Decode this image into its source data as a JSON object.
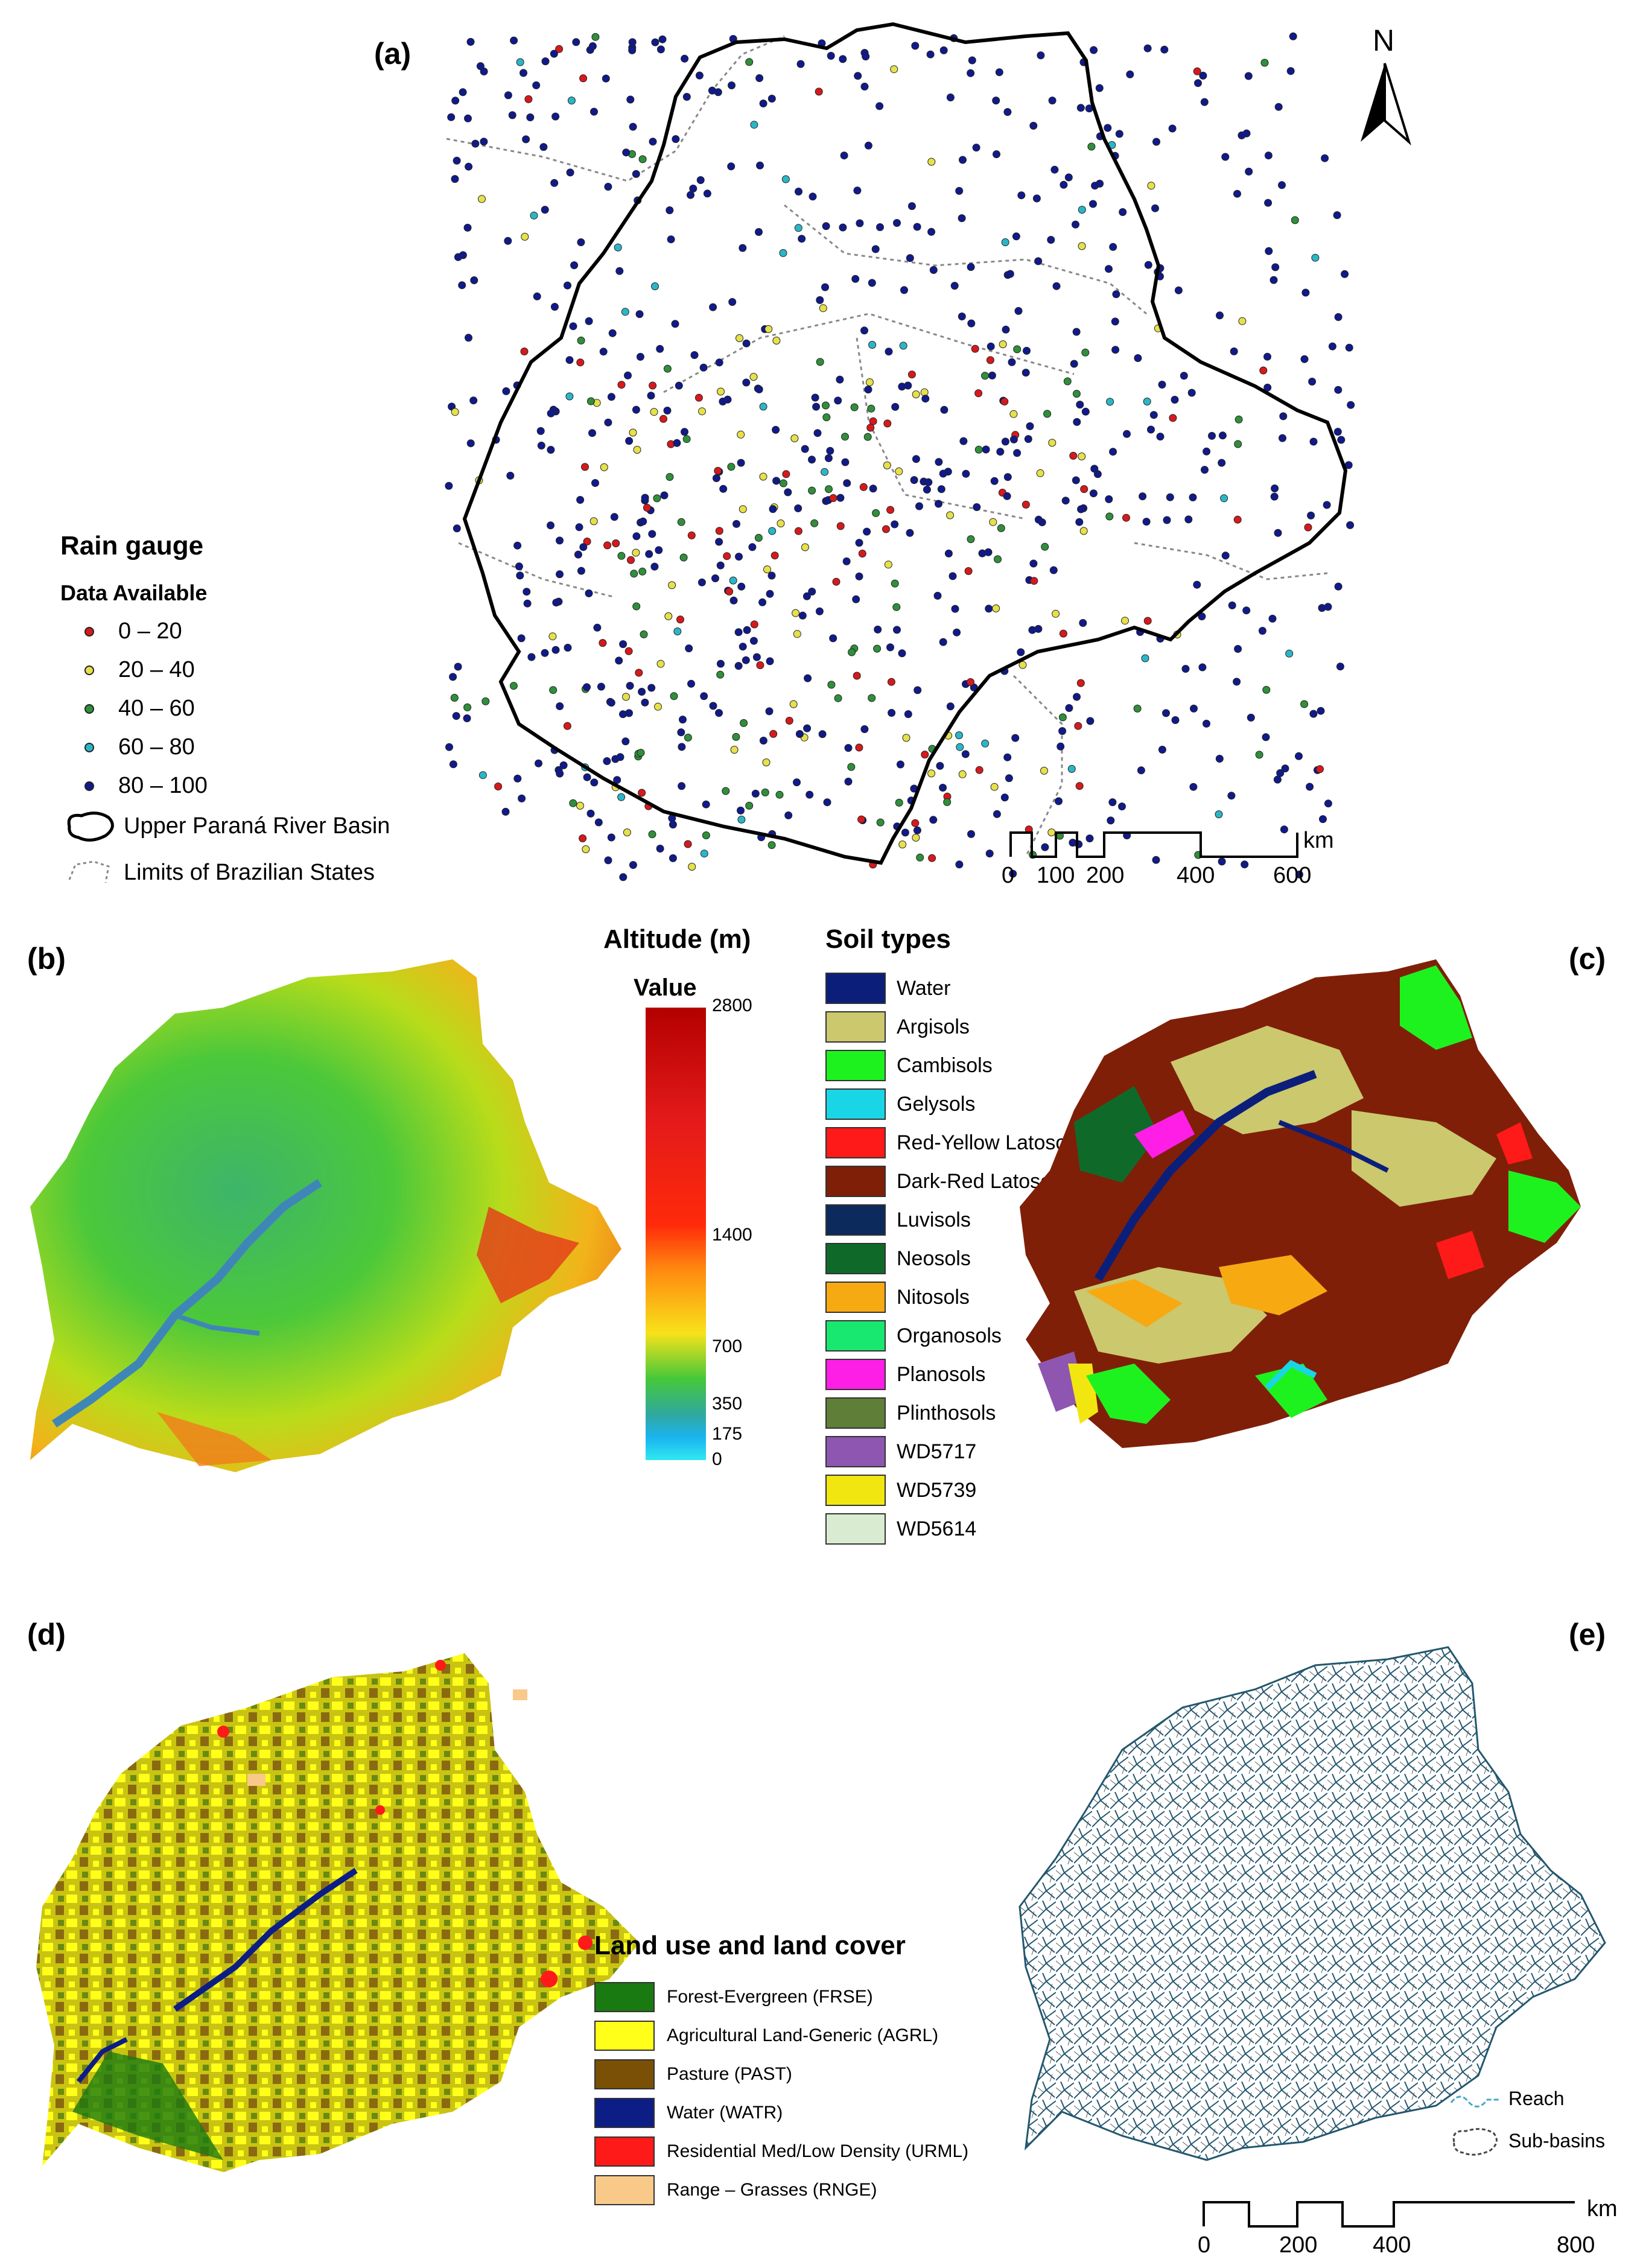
{
  "panels": {
    "a": "(a)",
    "b": "(b)",
    "c": "(c)",
    "d": "(d)",
    "e": "(e)"
  },
  "north_label": "N",
  "rain_gauge": {
    "title": "Rain gauge",
    "subtitle": "Data Available",
    "classes": [
      {
        "label": "0  –  20",
        "color": "#d7191c"
      },
      {
        "label": "20  –  40",
        "color": "#e6e04a"
      },
      {
        "label": "40  –  60",
        "color": "#2f8f3a"
      },
      {
        "label": "60  –  80",
        "color": "#2bb6c8"
      },
      {
        "label": "80  –  100",
        "color": "#101a8a"
      }
    ],
    "basin_label": "Upper Paraná River Basin",
    "states_label": "Limits of Brazilian States"
  },
  "scale_a": {
    "unit": "km",
    "ticks": [
      "0",
      "100",
      "200",
      "400",
      "600"
    ]
  },
  "altitude": {
    "title": "Altitude (m)",
    "subtitle": "Value",
    "ticks": [
      "2800",
      "1400",
      "700",
      "350",
      "175",
      "0"
    ]
  },
  "soil": {
    "title": "Soil types",
    "items": [
      {
        "label": "Water",
        "color": "#0b1f7a"
      },
      {
        "label": "Argisols",
        "color": "#cbc86e"
      },
      {
        "label": "Cambisols",
        "color": "#1ef21e"
      },
      {
        "label": "Gelysols",
        "color": "#19d6e6"
      },
      {
        "label": "Red-Yellow Latosols",
        "color": "#ff1a1a"
      },
      {
        "label": "Dark-Red Latosols",
        "color": "#7f1f08"
      },
      {
        "label": "Luvisols",
        "color": "#0c2a5c"
      },
      {
        "label": "Neosols",
        "color": "#0f6a2a"
      },
      {
        "label": "Nitosols",
        "color": "#f7a912"
      },
      {
        "label": "Organosols",
        "color": "#19e870"
      },
      {
        "label": "Planosols",
        "color": "#ff1ee6"
      },
      {
        "label": "Plinthosols",
        "color": "#5f7f38"
      },
      {
        "label": "WD5717",
        "color": "#8e56b0"
      },
      {
        "label": "WD5739",
        "color": "#f2e611"
      },
      {
        "label": "WD5614",
        "color": "#d9ecd2"
      }
    ]
  },
  "landuse": {
    "title": "Land use and land cover",
    "items": [
      {
        "label": "Forest-Evergreen (FRSE)",
        "color": "#1a7a12"
      },
      {
        "label": "Agricultural Land-Generic (AGRL)",
        "color": "#ffff1a"
      },
      {
        "label": "Pasture (PAST)",
        "color": "#7a4f06"
      },
      {
        "label": "Water (WATR)",
        "color": "#0c1e86"
      },
      {
        "label": "Residential Med/Low Density (URML)",
        "color": "#ff1a1a"
      },
      {
        "label": "Range – Grasses (RNGE)",
        "color": "#f9c98a"
      }
    ]
  },
  "subbasin_legend": {
    "reach": "Reach",
    "subbasins": "Sub-basins"
  },
  "scale_e": {
    "unit": "km",
    "ticks": [
      "0",
      "200",
      "400",
      "800"
    ]
  }
}
